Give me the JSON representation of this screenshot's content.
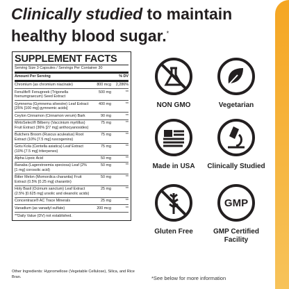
{
  "heading": {
    "emphasis": "Clinically studied",
    "rest": " to maintain healthy blood sugar.",
    "mark": "*"
  },
  "facts": {
    "title": "SUPPLEMENT FACTS",
    "serving": "Serving Size 3 Capsules / Servings Per Container 30",
    "header": [
      "Amount Per Serving",
      "% DV"
    ],
    "rows": [
      [
        "Chromium (as chromium niacinate)",
        "800 mcg",
        "2,286%"
      ],
      [
        "Fenulife® Fenugreek (Trigonella foenumgraecum) Seed Extract",
        "500 mg",
        "**"
      ],
      [
        "Gymnema (Gymnema silvestre) Leaf Extract [25% [100 mg] gymnemic acids]",
        "400 mg",
        "**"
      ],
      [
        "Ceylon Cinnamon (Cinnamon verum) Bark",
        "90 mg",
        "**"
      ],
      [
        "MirtoSelect® Bilberry (Vaccinium myrtillus) Fruit Extract (36% [27 mg] anthocyanosides)",
        "75 mg",
        "**"
      ],
      [
        "Butchers Broom (Ruscus aculeatus) Root Extract (10% [7.5 mg] ruscogenins)",
        "75 mg",
        "**"
      ],
      [
        "Gotu Kola (Centella asiatica) Leaf Extract (10% [7.5 mg] triterpenes)",
        "75 mg",
        "**"
      ],
      [
        "Alpha Lipoic Acid",
        "50 mg",
        "**"
      ],
      [
        "Banaba (Lagerstroemia speciosa) Leaf (2% [1 mg] corosolic acid)",
        "50 mg",
        "**"
      ],
      [
        "Bitter Melon (Momordica charantia) Fruit Extract (0.5% [0.25 mg] charantin)",
        "50 mg",
        "**"
      ],
      [
        "Holy Basil (Ocimum sanctum) Leaf Extract (2.5% [0.625 mg] ursolic and oleanolic acids)",
        "25 mg",
        "**"
      ],
      [
        "Concentrace® AC Trace Minerals",
        "25 mg",
        "**"
      ],
      [
        "Vanadium (as vanadyl sulfate)",
        "200 mcg",
        "**"
      ]
    ],
    "footnote": "**Daily Value (DV) not established."
  },
  "other": "Other Ingredients: Hypromellose (Vegetable Cellulose), Silica, and Rice Bran.",
  "badges": {
    "gmp_icon": "GMP",
    "labels": [
      "NON GMO",
      "Vegetarian",
      "Made in USA",
      "Clinically Studied",
      "Gluten Free",
      "GMP Certified Facility"
    ]
  },
  "note": "*See below for more information"
}
